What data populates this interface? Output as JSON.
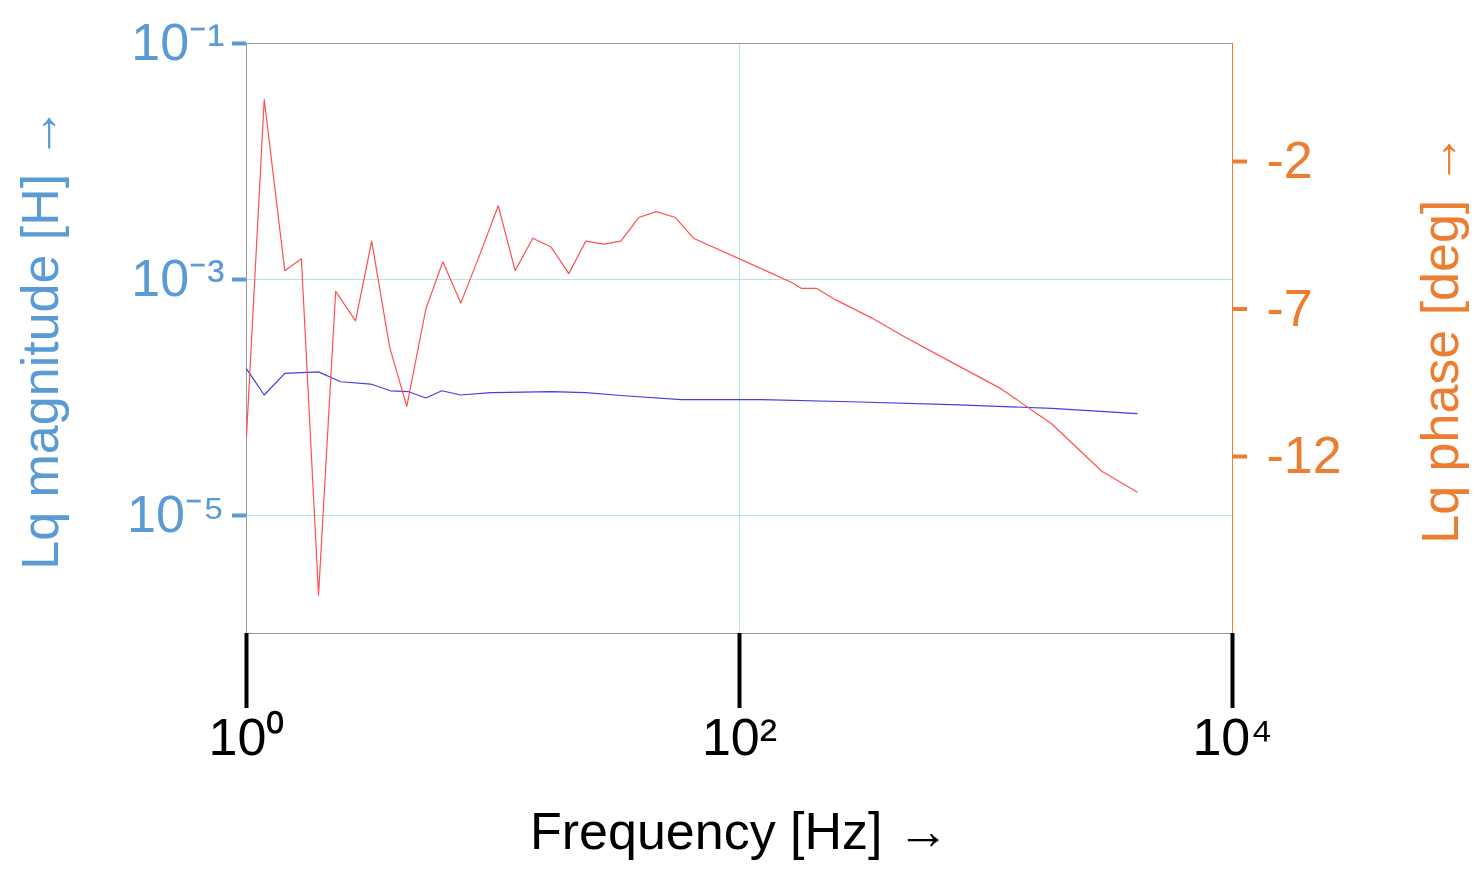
{
  "chart_data": {
    "type": "line",
    "x_label": "Frequency [Hz]",
    "y_label": "Lq magnitude [H]",
    "y2_label": "Lq phase [deg]",
    "log": true,
    "grid": true,
    "xlim": [
      1,
      10000
    ],
    "xticks": [
      {
        "value": 1,
        "label": "10⁰"
      },
      {
        "value": 100,
        "label": "10²"
      },
      {
        "value": 10000,
        "label": "10⁴"
      }
    ],
    "ylim": [
      1e-06,
      0.1
    ],
    "yticks": [
      {
        "value": 0.1,
        "label": "10⁻¹"
      },
      {
        "value": 0.001,
        "label": "10⁻³"
      },
      {
        "value": 1e-05,
        "label": "10⁻⁵"
      }
    ],
    "y2lim": [
      -18,
      2
    ],
    "y2ticks": [
      -2,
      -7,
      -12
    ],
    "series": [
      {
        "color": "#4040e0",
        "axis": "y",
        "x": [
          1,
          1.18,
          1.43,
          1.96,
          2.41,
          3.19,
          3.84,
          4.55,
          5.34,
          6.2,
          7.4,
          9.8,
          17.2,
          23.8,
          33,
          58,
          122,
          282,
          724,
          1850,
          4100
        ],
        "values": [
          0.000175,
          0.000105,
          0.00016,
          0.000165,
          0.000136,
          0.00013,
          0.000114,
          0.000112,
          9.9e-05,
          0.000114,
          0.000105,
          0.00011,
          0.000112,
          0.00011,
          0.000104,
          9.6e-05,
          9.6e-05,
          9.2e-05,
          8.7e-05,
          8.1e-05,
          7.3e-05
        ]
      },
      {
        "color": "#ff5050",
        "axis": "y2",
        "x": [
          1,
          1.18,
          1.43,
          1.67,
          1.96,
          2.3,
          2.77,
          3.22,
          3.81,
          4.47,
          5.34,
          6.26,
          7.4,
          8.8,
          10.5,
          12.3,
          14.5,
          17.2,
          20.3,
          23.8,
          28.2,
          33,
          39,
          46,
          55,
          65,
          100,
          163,
          178,
          205,
          247,
          343,
          457,
          724,
          1150,
          1850,
          2950,
          4100
        ],
        "values": [
          -11.3,
          0.1,
          -5.7,
          -5.3,
          -16.7,
          -6.4,
          -7.4,
          -4.7,
          -8.3,
          -10.3,
          -7.0,
          -5.4,
          -6.8,
          -5.2,
          -3.5,
          -5.7,
          -4.6,
          -4.9,
          -5.8,
          -4.7,
          -4.8,
          -4.7,
          -3.9,
          -3.7,
          -3.9,
          -4.6,
          -5.3,
          -6.1,
          -6.3,
          -6.3,
          -6.7,
          -7.3,
          -7.9,
          -8.8,
          -9.7,
          -10.9,
          -12.5,
          -13.2
        ]
      }
    ]
  }
}
